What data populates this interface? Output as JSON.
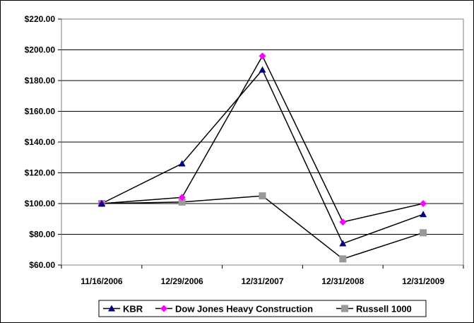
{
  "chart_data": {
    "type": "line",
    "title": "",
    "xlabel": "",
    "ylabel": "",
    "categories": [
      "11/16/2006",
      "12/29/2006",
      "12/31/2007",
      "12/31/2008",
      "12/31/2009"
    ],
    "ylim": [
      60,
      220
    ],
    "yticks": [
      60,
      80,
      100,
      120,
      140,
      160,
      180,
      200,
      220
    ],
    "ytick_labels": [
      "$60.00",
      "$80.00",
      "$100.00",
      "$120.00",
      "$140.00",
      "$160.00",
      "$180.00",
      "$200.00",
      "$220.00"
    ],
    "grid": "horizontal",
    "legend_position": "bottom",
    "series": [
      {
        "name": "KBR",
        "values": [
          100,
          126,
          187,
          74,
          93
        ],
        "marker": "triangle",
        "marker_color": "#000080",
        "line_color": "#000000"
      },
      {
        "name": "Dow Jones Heavy Construction",
        "values": [
          100,
          104,
          196,
          88,
          100
        ],
        "marker": "diamond",
        "marker_color": "#FF00FF",
        "line_color": "#000000"
      },
      {
        "name": "Russell 1000",
        "values": [
          100,
          101,
          105,
          64,
          81
        ],
        "marker": "square",
        "marker_color": "#999999",
        "line_color": "#000000"
      }
    ]
  }
}
